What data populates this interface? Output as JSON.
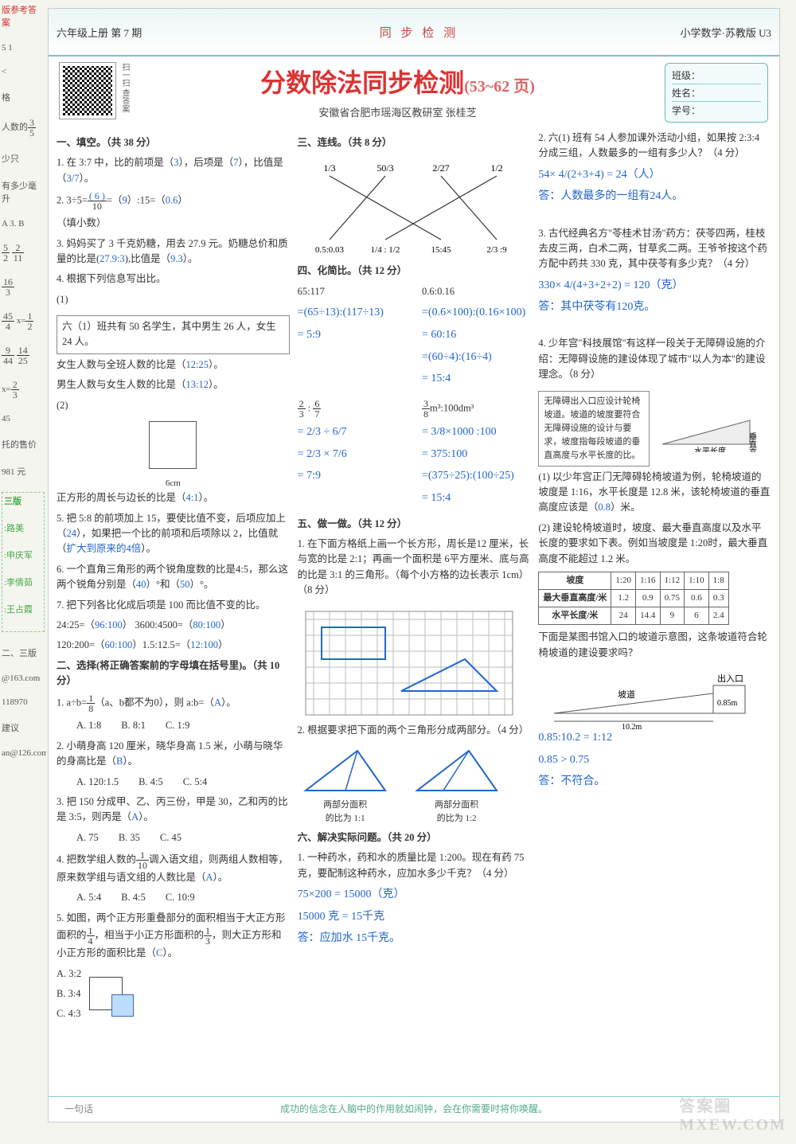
{
  "left_strip": {
    "line1": "版参考答案",
    "line2": "5  1",
    "line3": "<",
    "line4": "格",
    "line5": "人数的",
    "frac1_n": "3",
    "frac1_d": "5",
    "line6": "少只",
    "line7": "有多少毫升",
    "line8": "A  3. B",
    "frac2a_n": "5",
    "frac2a_d": "2",
    "frac2b_n": "2",
    "frac2b_d": "11",
    "frac3_n": "16",
    "frac3_d": "3",
    "frac4_n": "45",
    "frac4_d": "4",
    "eq4": "x=",
    "frac4b_n": "1",
    "frac4b_d": "2",
    "frac5a_n": "9",
    "frac5a_d": "44",
    "frac5b_n": "14",
    "frac5b_d": "25",
    "eq6": "x=",
    "frac6_n": "2",
    "frac6_d": "3",
    "line9": "45",
    "line10": "托的售价",
    "line11": "981 元",
    "box_title": "三版",
    "box1": ":路美",
    "box2": ":申庆军",
    "box3": ":李倩茹",
    "box4": ":王占霞",
    "line12": "二、三版",
    "line13": "@163.com",
    "line14": "118970",
    "line15": "建议",
    "line16": "an@126.com"
  },
  "header": {
    "left": "六年级上册    第 7 期",
    "center": "同 步 检 测",
    "right": "小学数学·苏教版 U3"
  },
  "title": {
    "main": "分数除法同步检测",
    "range": "(53~62 页)",
    "qr_label": "扫一扫 查答案",
    "subtitle": "安徽省合肥市瑶海区教研室   张桂芝",
    "info_class": "班级：",
    "info_name": "姓名：",
    "info_id": "学号："
  },
  "col1": {
    "sec1": "一、填空。（共 38 分）",
    "q1a": "1. 在 3:7 中，比的前项是（",
    "q1a_ans": "3",
    "q1b": "），后项是（",
    "q1b_ans": "7",
    "q1c": "），比值是（",
    "q1c_ans": "3/7",
    "q1d": "）。",
    "q2a": "2. 3÷5=",
    "q2frac_n": "( 6 )",
    "q2frac_d": "10",
    "q2b": "=（",
    "q2b_ans": "9",
    "q2c": "）:15=（",
    "q2c_ans": "0.6",
    "q2d": "）",
    "q2note": "（填小数）",
    "q3a": "3. 妈妈买了 3 千克奶糖，用去 27.9 元。奶糖总价和质量的比是(",
    "q3a_ans": "27.9:3",
    "q3b": "),比值是（",
    "q3b_ans": "9.3",
    "q3c": "）。",
    "q4": "4. 根据下列信息写出比。",
    "q4_1": "(1)",
    "q4box": "六（1）班共有 50 名学生，其中男生 26 人，女生 24 人。",
    "q4a": "女生人数与全班人数的比是（",
    "q4a_ans": "12:25",
    "q4b": "）。",
    "q4c": "男生人数与女生人数的比是（",
    "q4c_ans": "13:12",
    "q4d": "）。",
    "q4_2": "(2)",
    "q4_2cap": "6cm",
    "q4e": "正方形的周长与边长的比是（",
    "q4e_ans": "4:1",
    "q4f": "）。",
    "q5a": "5. 把 5:8 的前项加上 15，要使比值不变，后项应加上（",
    "q5a_ans": "24",
    "q5b": "），如果把一个比的前项和后项除以 2，比值就（",
    "q5b_ans": "扩大到原来的4倍",
    "q5c": "）。",
    "q6a": "6. 一个直角三角形的两个锐角度数的比是4:5，那么这两个锐角分别是（",
    "q6a_ans": "40",
    "q6b": "）°和（",
    "q6b_ans": "50",
    "q6c": "）°。",
    "q7": "7. 把下列各比化成后项是 100 而比值不变的比。",
    "q7a": "24:25=（",
    "q7a_ans": "96:100",
    "q7b": "）   3600:4500=（",
    "q7b_ans": "80:100",
    "q7c": "）",
    "q7d": "120:200=（",
    "q7d_ans": "60:100",
    "q7e": "）1.5:12.5=（",
    "q7e_ans": "12:100",
    "q7f": "）",
    "sec2": "二、选择(将正确答案前的字母填在括号里)。（共 10 分）",
    "q21a": "1. a÷b=",
    "q21frac_n": "1",
    "q21frac_d": "8",
    "q21b": "（a、b都不为0），则 a:b=（",
    "q21ans": "A",
    "q21c": "）。",
    "q21optA": "A. 1:8",
    "q21optB": "B. 8:1",
    "q21optC": "C. 1:9",
    "q22a": "2. 小萌身高 120 厘米，晓华身高 1.5 米，小萌与晓华的身高比是（",
    "q22ans": "B",
    "q22b": "）。",
    "q22optA": "A. 120:1.5",
    "q22optB": "B. 4:5",
    "q22optC": "C. 5:4",
    "q23a": "3. 把 150 分成甲、乙、丙三份，甲是 30，乙和丙的比是 3:5，则丙是（",
    "q23ans": "A",
    "q23b": "）。",
    "q23optA": "A. 75",
    "q23optB": "B. 35",
    "q23optC": "C. 45",
    "q24a": "4. 把数学组人数的",
    "q24frac_n": "1",
    "q24frac_d": "10",
    "q24b": "调入语文组，则两组人数相等，原来数学组与语文组的人数比是（",
    "q24ans": "A",
    "q24c": "）。",
    "q24optA": "A. 5:4",
    "q24optB": "B. 4:5",
    "q24optC": "C. 10:9",
    "q25a": "5. 如图，两个正方形重叠部分的面积相当于大正方形面积的",
    "q25f1n": "1",
    "q25f1d": "4",
    "q25b": "，相当于小正方形面积的",
    "q25f2n": "1",
    "q25f2d": "3",
    "q25c": "，则大正方形和小正方形的面积比是（",
    "q25ans": "C",
    "q25d": "）。",
    "q25optA": "A. 3:2",
    "q25optB": "B. 3:4",
    "q25optC": "C. 4:3"
  },
  "col2": {
    "sec3": "三、连线。（共 8 分）",
    "top_labels": [
      "1/3",
      "50/3",
      "2/27",
      "1/2"
    ],
    "bot_labels": [
      "0.5:0.03",
      "1/4 : 1/2",
      "15:45",
      "2/3 :9"
    ],
    "connections": [
      [
        0,
        2
      ],
      [
        1,
        0
      ],
      [
        2,
        3
      ],
      [
        3,
        1
      ]
    ],
    "sec4": "四、化简比。（共 12 分）",
    "p4a": "65:117",
    "p4b": "0.6:0.16",
    "w4a1": "=(65÷13):(117÷13)",
    "w4a2": "= 5:9",
    "w4b1": "=(0.6×100):(0.16×100)",
    "w4b2": "= 60:16",
    "w4b3": "=(60÷4):(16÷4)",
    "w4b4": "= 15:4",
    "p4c_n1": "2",
    "p4c_d1": "3",
    "p4c_n2": "6",
    "p4c_d2": "7",
    "p4d_n": "3",
    "p4d_d": "8",
    "p4d_unit": "m³:100dm³",
    "w4c1": "= 2/3 ÷ 6/7",
    "w4c2": "= 2/3 × 7/6",
    "w4c3": "= 7:9",
    "w4d1": "= 3/8×1000 :100",
    "w4d2": "= 375:100",
    "w4d3": "=(375÷25):(100÷25)",
    "w4d4": "= 15:4",
    "sec5": "五、做一做。（共 12 分）",
    "q51": "1. 在下面方格纸上画一个长方形，周长是12 厘米，长与宽的比是 2:1；再画一个面积是 6平方厘米、底与高的比是 3:1 的三角形。（每个小方格的边长表示 1cm）（8 分）",
    "q52": "2. 根据要求把下面的两个三角形分成两部分。（4 分）",
    "q52a": "两部分面积\n的比为 1:1",
    "q52b": "两部分面积\n的比为 1:2",
    "sec6": "六、解决实际问题。（共 20 分）",
    "q61": "1. 一种药水，药和水的质量比是 1:200。现在有药 75 克，要配制这种药水，应加水多少千克？（4 分）",
    "w61a": "75×200 = 15000（克）",
    "w61b": "15000 克 = 15千克",
    "w61c": "答：应加水 15千克。"
  },
  "col3": {
    "q62": "2. 六(1) 班有 54 人参加课外活动小组，如果按 2:3:4 分成三组，人数最多的一组有多少人？（4 分）",
    "w62a": "54× 4/(2+3+4) = 24（人）",
    "w62b": "答：人数最多的一组有24人。",
    "q63": "3. 古代经典名方\"苓桂术甘汤\"药方：茯苓四两，桂枝去皮三两，白术二两，甘草炙二两。王爷爷按这个药方配中药共 330 克，其中茯苓有多少克？（4 分）",
    "w63a": "330× 4/(4+3+2+2) = 120（克）",
    "w63b": "答：其中茯苓有120克。",
    "q64": "4. 少年宫\"科技展馆\"有这样一段关于无障碍设施的介绍：无障碍设施的建设体现了城市\"以人为本\"的建设理念。（8 分）",
    "q64box": "无障碍出入口应设计轮椅坡道。坡道的坡度要符合无障碍设施的设计与要求，坡度指每段坡道的垂直高度与水平长度的比。",
    "q64lbl1": "垂直高度",
    "q64lbl2": "水平长度",
    "q641": "(1) 以少年宫正门无障碍轮椅坡道为例，轮椅坡道的坡度是 1:16，水平长度是 12.8 米，该轮椅坡道的垂直高度应该是（",
    "q641ans": "0.8",
    "q641b": "）米。",
    "q642": "(2) 建设轮椅坡道时，坡度、最大垂直高度以及水平长度的要求如下表。例如当坡度是 1:20时，最大垂直高度不能超过 1.2 米。",
    "tbl_h1": "坡度",
    "tbl_h2": "最大垂直高度/米",
    "tbl_h3": "水平长度/米",
    "tbl_slopes": [
      "1:20",
      "1:16",
      "1:12",
      "1:10",
      "1:8"
    ],
    "tbl_heights": [
      "1.2",
      "0.9",
      "0.75",
      "0.6",
      "0.3"
    ],
    "tbl_lengths": [
      "24",
      "14.4",
      "9",
      "6",
      "2.4"
    ],
    "q642b": "下面是某图书馆入口的坡道示意图，这条坡道符合轮椅坡道的建设要求吗？",
    "diag_slope": "坡道",
    "diag_exit": "出入口",
    "diag_h": "0.85m",
    "diag_w": "10.2m",
    "w642a": "0.85:10.2 = 1:12",
    "w642b": "0.85 > 0.75",
    "w642c": "答：不符合。"
  },
  "footer": {
    "tag": "一句话",
    "text": "成功的信念在人脑中的作用就如闹钟，会在你需要时将你唤醒。"
  },
  "watermark": "答案圈\nMXEW.COM"
}
